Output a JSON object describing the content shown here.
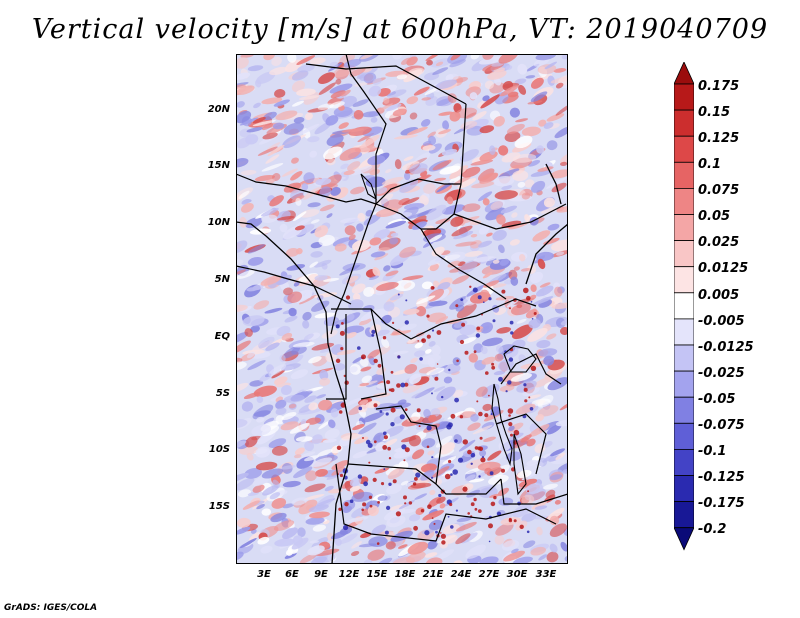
{
  "title": "Vertical velocity [m/s] at 600hPa, VT: 2019040709",
  "map": {
    "lat_labels": [
      "20N",
      "15N",
      "10N",
      "5N",
      "EQ",
      "5S",
      "10S",
      "15S"
    ],
    "lon_labels": [
      "3E",
      "6E",
      "9E",
      "12E",
      "15E",
      "18E",
      "21E",
      "24E",
      "27E",
      "30E",
      "33E"
    ]
  },
  "colorbar": {
    "levels": [
      "0.175",
      "0.15",
      "0.125",
      "0.1",
      "0.075",
      "0.05",
      "0.025",
      "0.0125",
      "0.005",
      "-0.005",
      "-0.0125",
      "-0.025",
      "-0.05",
      "-0.075",
      "-0.1",
      "-0.125",
      "-0.175",
      "-0.2"
    ],
    "colors": [
      "#9b0d0d",
      "#b71919",
      "#cc2e2e",
      "#dd4848",
      "#e66464",
      "#ee8585",
      "#f4a6a6",
      "#f9c6c6",
      "#fde4e4",
      "#ffffff",
      "#e4e4fb",
      "#c4c4f5",
      "#a3a3ee",
      "#8080e3",
      "#5f5fd7",
      "#4343c6",
      "#2a2ab0",
      "#181896",
      "#0a0a78"
    ]
  },
  "footer": {
    "credit": "GrADS: IGES/COLA"
  }
}
